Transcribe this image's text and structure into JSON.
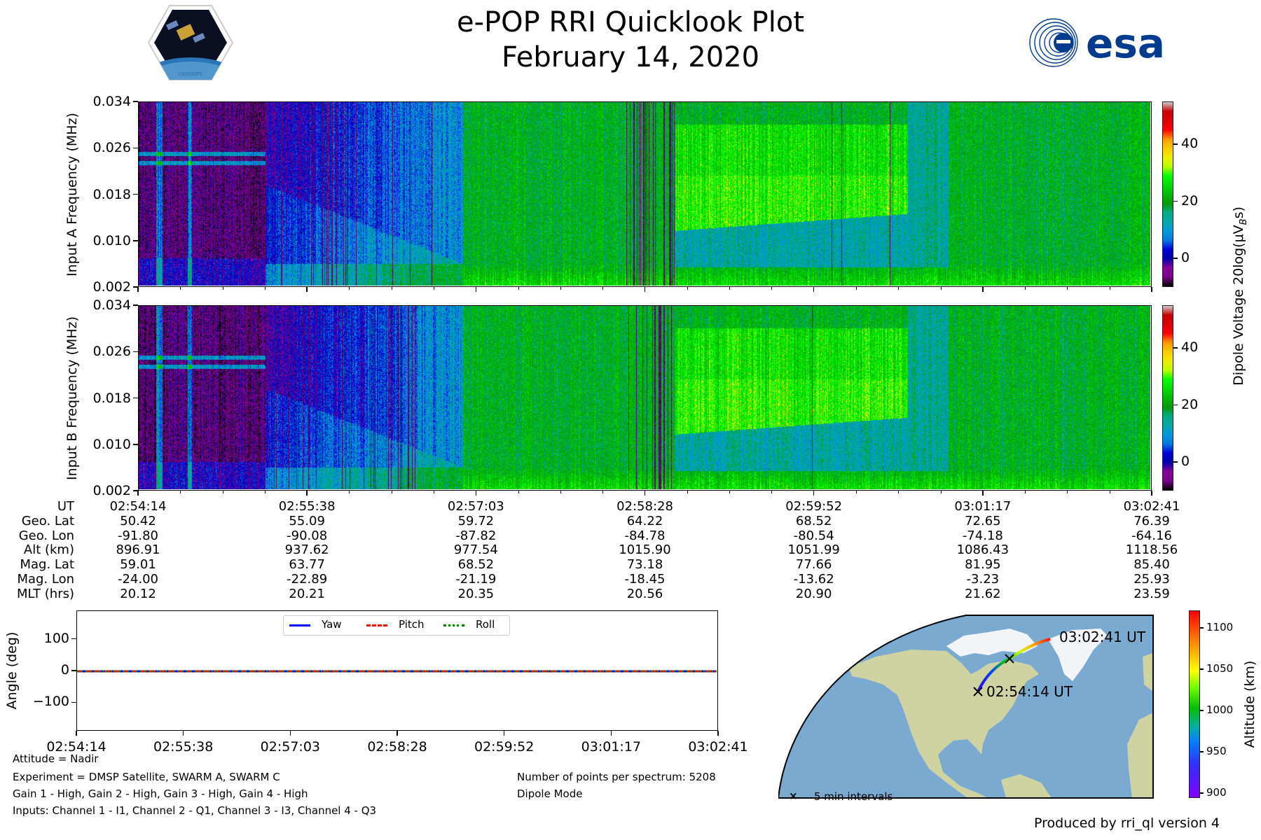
{
  "title": "e-POP RRI Quicklook Plot",
  "date": "February 14, 2020",
  "logos": {
    "left": "CASSIOPE",
    "right": "esa"
  },
  "colors": {
    "esa_blue": "#003b8e",
    "ocean": "#7aaad0",
    "land": "#cfd3a2",
    "ice": "#f2f4f7"
  },
  "chart_data": [
    {
      "type": "heatmap",
      "name": "spectrogram-a",
      "ylabel": "Input A Frequency (MHz)",
      "yticks": [
        "0.034",
        "0.026",
        "0.018",
        "0.010",
        "0.002"
      ],
      "ylim": [
        0.002,
        0.034
      ],
      "xticks": [
        "02:54:14",
        "02:55:38",
        "02:57:03",
        "02:58:28",
        "02:59:52",
        "03:01:17",
        "03:02:41"
      ],
      "colorbar": {
        "ticks": [
          "40",
          "20",
          "0"
        ],
        "tick_values": [
          40,
          20,
          0
        ],
        "range": [
          -10,
          55
        ]
      }
    },
    {
      "type": "heatmap",
      "name": "spectrogram-b",
      "ylabel": "Input B Frequency (MHz)",
      "yticks": [
        "0.034",
        "0.026",
        "0.018",
        "0.010",
        "0.002"
      ],
      "ylim": [
        0.002,
        0.034
      ],
      "xticks": [
        "02:54:14",
        "02:55:38",
        "02:57:03",
        "02:58:28",
        "02:59:52",
        "03:01:17",
        "03:02:41"
      ],
      "colorbar": {
        "ticks": [
          "40",
          "20",
          "0"
        ],
        "tick_values": [
          40,
          20,
          0
        ],
        "range": [
          -10,
          55
        ]
      }
    },
    {
      "type": "line",
      "name": "attitude",
      "ylabel": "Angle (deg)",
      "yticks": [
        "100",
        "0",
        "−100"
      ],
      "ytick_values": [
        100,
        0,
        -100
      ],
      "ylim": [
        -190,
        190
      ],
      "xticks": [
        "02:54:14",
        "02:55:38",
        "02:57:03",
        "02:58:28",
        "02:59:52",
        "03:01:17",
        "03:02:41"
      ],
      "series": [
        {
          "name": "Yaw",
          "values": [
            0,
            0,
            0,
            0,
            0,
            0,
            0
          ],
          "color": "#0000ff",
          "style": "solid"
        },
        {
          "name": "Pitch",
          "values": [
            0,
            0,
            0,
            0,
            0,
            0,
            0
          ],
          "color": "#ff0000",
          "style": "dashed"
        },
        {
          "name": "Roll",
          "values": [
            0,
            0,
            0,
            0,
            0,
            0,
            0
          ],
          "color": "#008000",
          "style": "dotted"
        }
      ],
      "legend": "top-center"
    },
    {
      "type": "scatter",
      "name": "orbit-map",
      "start_label": "02:54:14 UT",
      "end_label": "03:02:41 UT",
      "colorbar": {
        "label": "Altitude (km)",
        "ticks": [
          "1100",
          "1050",
          "1000",
          "950",
          "900"
        ],
        "tick_values": [
          1100,
          1050,
          1000,
          950,
          900
        ],
        "range": [
          894,
          1121
        ]
      },
      "legend": "×",
      "legend_label": "5 min intervals"
    }
  ],
  "spectro_colorbar_label": "Dipole Voltage 20log(μV",
  "spectro_colorbar_sub": "B",
  "spectro_colorbar_tail": "s)",
  "table": {
    "labels": [
      "UT",
      "Geo. Lat",
      "Geo. Lon",
      "Alt (km)",
      "Mag. Lat",
      "Mag. Lon",
      "MLT (hrs)"
    ],
    "columns": [
      [
        "02:54:14",
        "50.42",
        "-91.80",
        "896.91",
        "59.01",
        "-24.00",
        "20.12"
      ],
      [
        "02:55:38",
        "55.09",
        "-90.08",
        "937.62",
        "63.77",
        "-22.89",
        "20.21"
      ],
      [
        "02:57:03",
        "59.72",
        "-87.82",
        "977.54",
        "68.52",
        "-21.19",
        "20.35"
      ],
      [
        "02:58:28",
        "64.22",
        "-84.78",
        "1015.90",
        "73.18",
        "-18.45",
        "20.56"
      ],
      [
        "02:59:52",
        "68.52",
        "-80.54",
        "1051.99",
        "77.66",
        "-13.62",
        "20.90"
      ],
      [
        "03:01:17",
        "72.65",
        "-74.18",
        "1086.43",
        "81.95",
        "-3.23",
        "21.62"
      ],
      [
        "03:02:41",
        "76.39",
        "-64.16",
        "1118.56",
        "85.40",
        "25.93",
        "23.59"
      ]
    ]
  },
  "info": {
    "attitude": "Attitude = Nadir",
    "experiment": "Experiment = DMSP Satellite, SWARM A, SWARM C",
    "gain": "Gain 1 - High, Gain 2 - High, Gain 3 - High, Gain 4 - High",
    "inputs": "Inputs: Channel 1 - I1, Channel 2 - Q1, Channel 3 - I3, Channel 4 - Q3",
    "points": "Number of points per spectrum: 5208",
    "mode": "Dipole Mode"
  },
  "footer": "Produced by rri_ql version 4"
}
